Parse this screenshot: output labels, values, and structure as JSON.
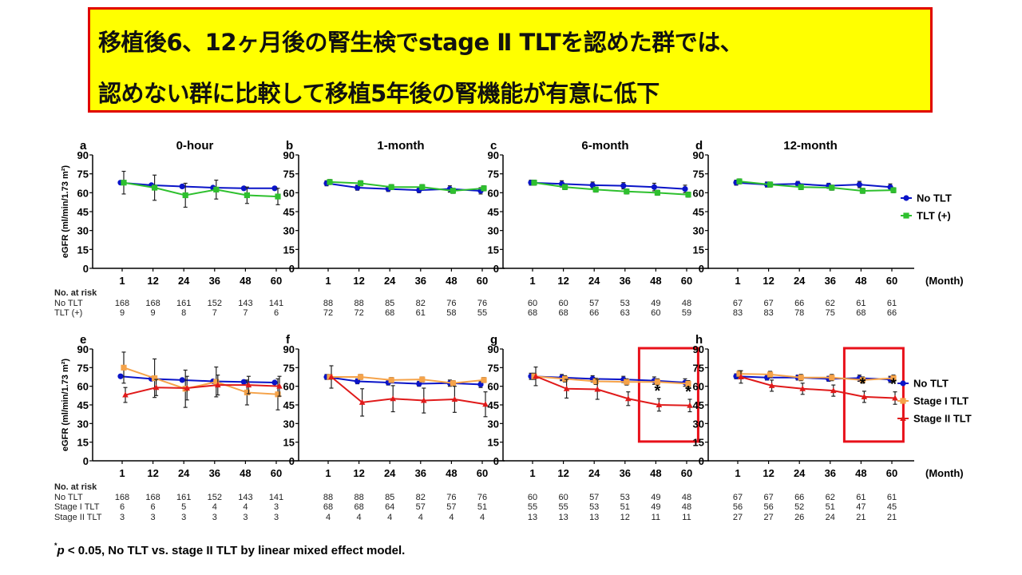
{
  "banner": {
    "line1": "移植後6、12ヶ月後の腎生検でstage Ⅱ TLTを認めた群では、",
    "line2": "認めない群に比較して移植5年後の腎機能が有意に低下"
  },
  "colors": {
    "no_tlt": "#0a14c8",
    "tlt_plus": "#2ec02e",
    "stage1": "#f5a34a",
    "stage2": "#e01a1a",
    "banner_bg": "#ffff00",
    "banner_border": "#e00000",
    "highlight_box": "#e8101a"
  },
  "x_unit_label": "(Month)",
  "ylabel": "eGFR (ml/min/1.73 m²)",
  "legend_top": [
    {
      "label": "No TLT",
      "color_key": "no_tlt",
      "marker": "circle"
    },
    {
      "label": "TLT (+)",
      "color_key": "tlt_plus",
      "marker": "square"
    }
  ],
  "legend_bottom": [
    {
      "label": "No TLT",
      "color_key": "no_tlt",
      "marker": "circle"
    },
    {
      "label": "Stage I TLT",
      "color_key": "stage1",
      "marker": "square"
    },
    {
      "label": "Stage II TLT",
      "color_key": "stage2",
      "marker": "triangle"
    }
  ],
  "risk_top": {
    "header": "No. at risk",
    "labels": [
      "No TLT",
      "TLT  (+)"
    ]
  },
  "risk_bottom": {
    "header": "No. at risk",
    "labels": [
      "No TLT",
      "Stage I TLT",
      "Stage II TLT"
    ]
  },
  "footnote": {
    "star": "*",
    "p": "p",
    "text": " <  0.05, No  TLT vs. stage II  TLT by linear mixed effect model."
  },
  "chart_data": [
    {
      "panel": "a",
      "title": "0-hour",
      "type": "line",
      "categories": [
        "1",
        "12",
        "24",
        "36",
        "48",
        "60"
      ],
      "yticks": [
        0,
        15,
        30,
        45,
        60,
        75,
        90
      ],
      "ylim": [
        0,
        90
      ],
      "series": [
        {
          "name": "No TLT",
          "color_key": "no_tlt",
          "marker": "circle",
          "values": [
            68,
            66,
            65,
            64,
            63.5,
            63.5
          ],
          "err": [
            1,
            1,
            1,
            1,
            1,
            1
          ]
        },
        {
          "name": "TLT (+)",
          "color_key": "tlt_plus",
          "marker": "square",
          "values": [
            68,
            64,
            58,
            62.5,
            58,
            57
          ],
          "err": [
            9,
            10,
            9.5,
            7.5,
            6.5,
            6.5
          ]
        }
      ],
      "at_risk": [
        [
          168,
          168,
          161,
          152,
          143,
          141
        ],
        [
          9,
          9,
          8,
          7,
          7,
          6
        ]
      ],
      "highlight": false,
      "stars": []
    },
    {
      "panel": "b",
      "title": "1-month",
      "type": "line",
      "categories": [
        "1",
        "12",
        "24",
        "36",
        "48",
        "60"
      ],
      "yticks": [
        0,
        15,
        30,
        45,
        60,
        75,
        90
      ],
      "ylim": [
        0,
        90
      ],
      "series": [
        {
          "name": "No TLT",
          "color_key": "no_tlt",
          "marker": "circle",
          "values": [
            67.5,
            64,
            63,
            62,
            63,
            61.5
          ],
          "err": [
            2,
            2,
            2,
            2,
            2.5,
            2.5
          ]
        },
        {
          "name": "TLT (+)",
          "color_key": "tlt_plus",
          "marker": "square",
          "values": [
            68.5,
            67.5,
            64.5,
            64.5,
            61.5,
            63.5
          ],
          "err": [
            2,
            2,
            2,
            2,
            2,
            2
          ]
        }
      ],
      "at_risk": [
        [
          88,
          88,
          85,
          82,
          76,
          76
        ],
        [
          72,
          72,
          68,
          61,
          58,
          55
        ]
      ],
      "highlight": false,
      "stars": []
    },
    {
      "panel": "c",
      "title": "6-month",
      "type": "line",
      "categories": [
        "1",
        "12",
        "24",
        "36",
        "48",
        "60"
      ],
      "yticks": [
        0,
        15,
        30,
        45,
        60,
        75,
        90
      ],
      "ylim": [
        0,
        90
      ],
      "series": [
        {
          "name": "No TLT",
          "color_key": "no_tlt",
          "marker": "circle",
          "values": [
            68,
            67,
            66,
            65.5,
            64.5,
            63
          ],
          "err": [
            2,
            2.5,
            2.5,
            2.5,
            3,
            3
          ]
        },
        {
          "name": "TLT (+)",
          "color_key": "tlt_plus",
          "marker": "square",
          "values": [
            68,
            64.5,
            62.5,
            61,
            60,
            58.5
          ],
          "err": [
            2,
            2,
            2,
            2,
            2,
            2
          ]
        }
      ],
      "at_risk": [
        [
          60,
          60,
          57,
          53,
          49,
          48
        ],
        [
          68,
          68,
          66,
          63,
          60,
          59
        ]
      ],
      "highlight": false,
      "stars": []
    },
    {
      "panel": "d",
      "title": "12-month",
      "type": "line",
      "categories": [
        "1",
        "12",
        "24",
        "36",
        "48",
        "60"
      ],
      "yticks": [
        0,
        15,
        30,
        45,
        60,
        75,
        90
      ],
      "ylim": [
        0,
        90
      ],
      "series": [
        {
          "name": "No TLT",
          "color_key": "no_tlt",
          "marker": "circle",
          "values": [
            68,
            66.5,
            67,
            65.5,
            66.5,
            64.5
          ],
          "err": [
            2,
            2,
            2,
            2,
            2.5,
            2.5
          ]
        },
        {
          "name": "TLT (+)",
          "color_key": "tlt_plus",
          "marker": "square",
          "values": [
            69,
            66.5,
            64.5,
            64,
            61.5,
            62
          ],
          "err": [
            2,
            2,
            2,
            2,
            2,
            2
          ]
        }
      ],
      "at_risk": [
        [
          67,
          67,
          66,
          62,
          61,
          61
        ],
        [
          83,
          83,
          78,
          75,
          68,
          66
        ]
      ],
      "highlight": false,
      "stars": []
    },
    {
      "panel": "e",
      "title": "",
      "type": "line",
      "categories": [
        "1",
        "12",
        "24",
        "36",
        "48",
        "60"
      ],
      "yticks": [
        0,
        15,
        30,
        45,
        60,
        75,
        90
      ],
      "ylim": [
        0,
        90
      ],
      "series": [
        {
          "name": "No TLT",
          "color_key": "no_tlt",
          "marker": "circle",
          "values": [
            68,
            66,
            65,
            64,
            63.5,
            63
          ],
          "err": [
            1,
            1,
            1,
            1,
            1,
            1
          ]
        },
        {
          "name": "Stage I TLT",
          "color_key": "stage1",
          "marker": "square",
          "values": [
            75,
            66.5,
            58,
            63.5,
            55,
            53.5
          ],
          "err": [
            12.5,
            15.5,
            15,
            12,
            10,
            12.5
          ]
        },
        {
          "name": "Stage II TLT",
          "color_key": "stage2",
          "marker": "triangle",
          "values": [
            53,
            59,
            58.5,
            61,
            61,
            60
          ],
          "err": [
            6,
            6.5,
            9.5,
            8,
            7,
            8
          ]
        }
      ],
      "at_risk": [
        [
          168,
          168,
          161,
          152,
          143,
          141
        ],
        [
          6,
          6,
          5,
          4,
          4,
          3
        ],
        [
          3,
          3,
          3,
          3,
          3,
          3
        ]
      ],
      "highlight": false,
      "stars": []
    },
    {
      "panel": "f",
      "title": "",
      "type": "line",
      "categories": [
        "1",
        "12",
        "24",
        "36",
        "48",
        "60"
      ],
      "yticks": [
        0,
        15,
        30,
        45,
        60,
        75,
        90
      ],
      "ylim": [
        0,
        90
      ],
      "series": [
        {
          "name": "No TLT",
          "color_key": "no_tlt",
          "marker": "circle",
          "values": [
            67.5,
            64,
            63,
            62,
            62.5,
            61.5
          ],
          "err": [
            2,
            2,
            2,
            2,
            2.5,
            2.5
          ]
        },
        {
          "name": "Stage I TLT",
          "color_key": "stage1",
          "marker": "square",
          "values": [
            67.5,
            67.5,
            65,
            65.5,
            62.5,
            65
          ],
          "err": [
            2,
            2,
            2,
            2,
            2,
            2
          ]
        },
        {
          "name": "Stage II TLT",
          "color_key": "stage2",
          "marker": "triangle",
          "values": [
            67.5,
            47,
            50,
            48.5,
            49.5,
            45.5
          ],
          "err": [
            9,
            11,
            10.5,
            10,
            10.5,
            10
          ]
        }
      ],
      "at_risk": [
        [
          88,
          88,
          85,
          82,
          76,
          76
        ],
        [
          68,
          68,
          64,
          57,
          57,
          51
        ],
        [
          4,
          4,
          4,
          4,
          4,
          4
        ]
      ],
      "highlight": false,
      "stars": []
    },
    {
      "panel": "g",
      "title": "",
      "type": "line",
      "categories": [
        "1",
        "12",
        "24",
        "36",
        "48",
        "60"
      ],
      "yticks": [
        0,
        15,
        30,
        45,
        60,
        75,
        90
      ],
      "ylim": [
        0,
        90
      ],
      "series": [
        {
          "name": "No TLT",
          "color_key": "no_tlt",
          "marker": "circle",
          "values": [
            68,
            67,
            66,
            65.5,
            64.5,
            63
          ],
          "err": [
            2.5,
            2.5,
            2.5,
            2.5,
            3,
            3
          ]
        },
        {
          "name": "Stage I TLT",
          "color_key": "stage1",
          "marker": "square",
          "values": [
            68,
            66,
            64,
            63.5,
            63.5,
            62
          ],
          "err": [
            2.5,
            2.5,
            2.5,
            2.5,
            2.5,
            2.5
          ]
        },
        {
          "name": "Stage II TLT",
          "color_key": "stage2",
          "marker": "triangle",
          "values": [
            68,
            58,
            57.5,
            50,
            45,
            44.5
          ],
          "err": [
            7.5,
            7.5,
            8,
            5.5,
            5,
            5
          ]
        }
      ],
      "at_risk": [
        [
          60,
          60,
          57,
          53,
          49,
          48
        ],
        [
          55,
          55,
          53,
          51,
          49,
          48
        ],
        [
          13,
          13,
          13,
          12,
          11,
          11
        ]
      ],
      "highlight": true,
      "stars": [
        "*",
        "*"
      ]
    },
    {
      "panel": "h",
      "title": "",
      "type": "line",
      "categories": [
        "1",
        "12",
        "24",
        "36",
        "48",
        "60"
      ],
      "yticks": [
        0,
        15,
        30,
        45,
        60,
        75,
        90
      ],
      "ylim": [
        0,
        90
      ],
      "series": [
        {
          "name": "No TLT",
          "color_key": "no_tlt",
          "marker": "circle",
          "values": [
            68,
            67,
            67,
            66,
            66.5,
            65.5
          ],
          "err": [
            2,
            2,
            2,
            2,
            2.5,
            2.5
          ]
        },
        {
          "name": "Stage I TLT",
          "color_key": "stage1",
          "marker": "square",
          "values": [
            70,
            69.5,
            67,
            67,
            65,
            66.5
          ],
          "err": [
            2.5,
            2.5,
            2.5,
            2.5,
            2.5,
            2.5
          ]
        },
        {
          "name": "Stage II TLT",
          "color_key": "stage2",
          "marker": "triangle",
          "values": [
            67.5,
            60.5,
            58,
            56.5,
            51.5,
            50.5
          ],
          "err": [
            5,
            4.5,
            4.5,
            4.5,
            4.5,
            5
          ]
        }
      ],
      "at_risk": [
        [
          67,
          67,
          66,
          62,
          61,
          61
        ],
        [
          56,
          56,
          52,
          51,
          47,
          45
        ],
        [
          27,
          27,
          26,
          24,
          21,
          21
        ]
      ],
      "highlight": true,
      "stars": [
        "*",
        "*"
      ]
    }
  ]
}
